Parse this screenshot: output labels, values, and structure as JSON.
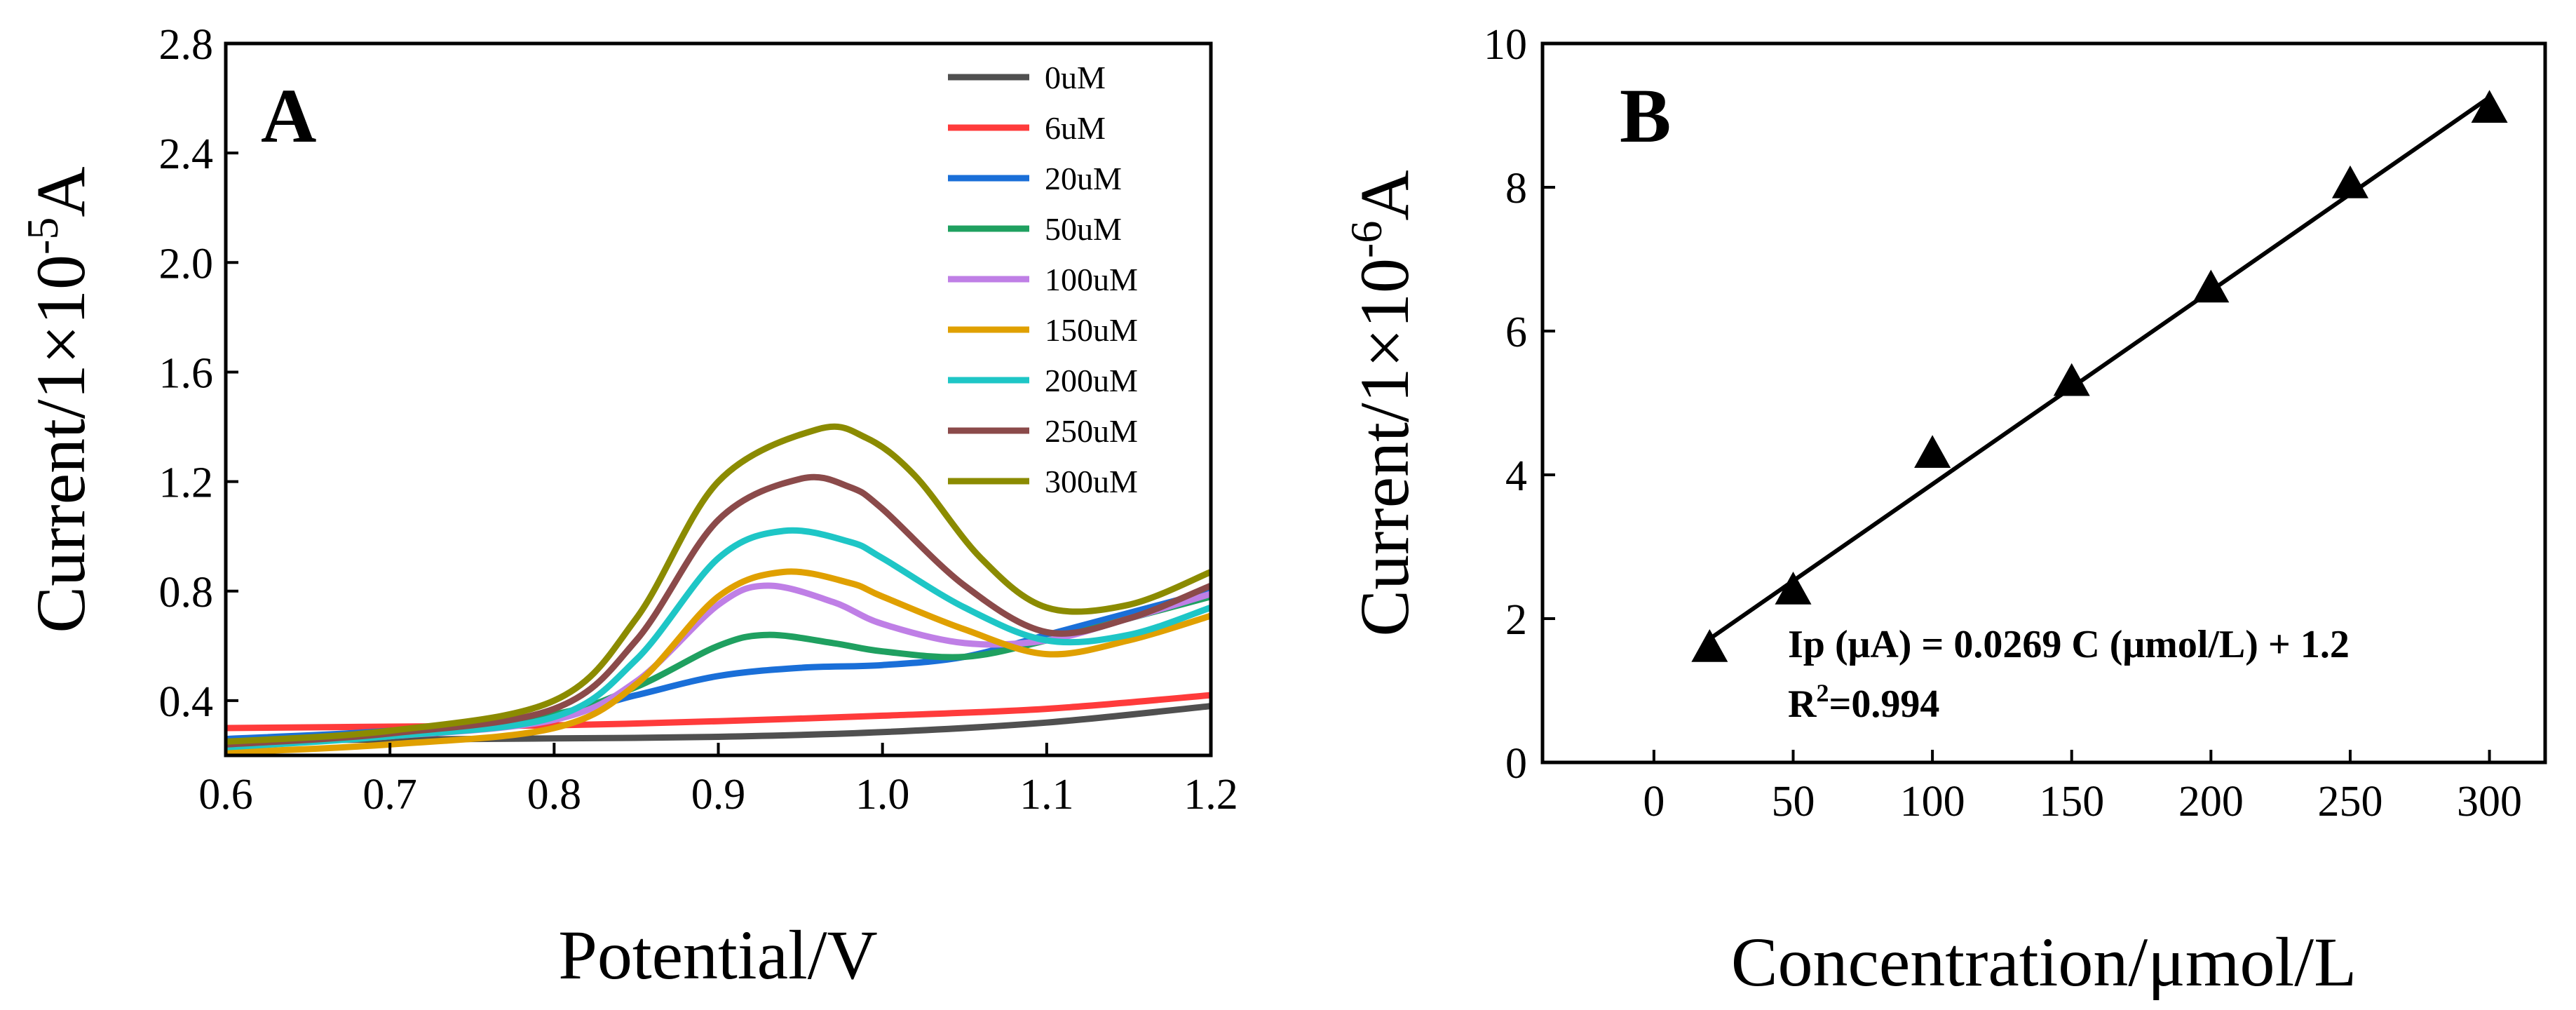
{
  "chart_data": [
    {
      "type": "line",
      "panel_label": "A",
      "xlabel": "Potential/V",
      "ylabel_prefix": "Current/1×10",
      "ylabel_exp": "-5",
      "ylabel_unit": "A",
      "xlim": [
        0.6,
        1.2
      ],
      "ylim": [
        0.2,
        2.8
      ],
      "xticks": [
        "0.6",
        "0.7",
        "0.8",
        "0.9",
        "1.0",
        "1.1",
        "1.2"
      ],
      "yticks": [
        "0.4",
        "0.8",
        "1.2",
        "1.6",
        "2.0",
        "2.4",
        "2.8"
      ],
      "legend_position": "top-right",
      "series": [
        {
          "name": "0uM",
          "color": "#505050",
          "points": [
            [
              0.6,
              0.255
            ],
            [
              0.7,
              0.258
            ],
            [
              0.8,
              0.262
            ],
            [
              0.9,
              0.268
            ],
            [
              1.0,
              0.285
            ],
            [
              1.1,
              0.32
            ],
            [
              1.2,
              0.38
            ]
          ]
        },
        {
          "name": "6uM",
          "color": "#ff3b3b",
          "points": [
            [
              0.6,
              0.3
            ],
            [
              0.7,
              0.305
            ],
            [
              0.8,
              0.31
            ],
            [
              0.9,
              0.325
            ],
            [
              1.0,
              0.345
            ],
            [
              1.1,
              0.37
            ],
            [
              1.2,
              0.42
            ]
          ]
        },
        {
          "name": "20uM",
          "color": "#1a6fd8",
          "points": [
            [
              0.6,
              0.26
            ],
            [
              0.7,
              0.29
            ],
            [
              0.8,
              0.35
            ],
            [
              0.85,
              0.42
            ],
            [
              0.9,
              0.49
            ],
            [
              0.95,
              0.52
            ],
            [
              1.0,
              0.53
            ],
            [
              1.05,
              0.56
            ],
            [
              1.1,
              0.64
            ],
            [
              1.15,
              0.72
            ],
            [
              1.2,
              0.8
            ]
          ]
        },
        {
          "name": "50uM",
          "color": "#1fa060",
          "points": [
            [
              0.6,
              0.25
            ],
            [
              0.7,
              0.28
            ],
            [
              0.8,
              0.35
            ],
            [
              0.85,
              0.45
            ],
            [
              0.9,
              0.6
            ],
            [
              0.93,
              0.64
            ],
            [
              0.97,
              0.61
            ],
            [
              1.0,
              0.58
            ],
            [
              1.05,
              0.56
            ],
            [
              1.1,
              0.62
            ],
            [
              1.15,
              0.7
            ],
            [
              1.2,
              0.78
            ]
          ]
        },
        {
          "name": "100uM",
          "color": "#bf7fe6",
          "points": [
            [
              0.6,
              0.24
            ],
            [
              0.7,
              0.27
            ],
            [
              0.8,
              0.33
            ],
            [
              0.85,
              0.47
            ],
            [
              0.9,
              0.75
            ],
            [
              0.93,
              0.82
            ],
            [
              0.97,
              0.76
            ],
            [
              1.0,
              0.68
            ],
            [
              1.05,
              0.61
            ],
            [
              1.1,
              0.62
            ],
            [
              1.15,
              0.7
            ],
            [
              1.2,
              0.79
            ]
          ]
        },
        {
          "name": "150uM",
          "color": "#e0a000",
          "points": [
            [
              0.6,
              0.21
            ],
            [
              0.7,
              0.24
            ],
            [
              0.8,
              0.3
            ],
            [
              0.85,
              0.46
            ],
            [
              0.9,
              0.78
            ],
            [
              0.94,
              0.87
            ],
            [
              0.98,
              0.83
            ],
            [
              1.0,
              0.78
            ],
            [
              1.05,
              0.66
            ],
            [
              1.1,
              0.57
            ],
            [
              1.15,
              0.62
            ],
            [
              1.2,
              0.71
            ]
          ]
        },
        {
          "name": "200uM",
          "color": "#1ec6c6",
          "points": [
            [
              0.6,
              0.23
            ],
            [
              0.7,
              0.27
            ],
            [
              0.8,
              0.34
            ],
            [
              0.85,
              0.55
            ],
            [
              0.9,
              0.92
            ],
            [
              0.94,
              1.02
            ],
            [
              0.98,
              0.98
            ],
            [
              1.0,
              0.92
            ],
            [
              1.05,
              0.74
            ],
            [
              1.1,
              0.62
            ],
            [
              1.15,
              0.64
            ],
            [
              1.2,
              0.74
            ]
          ]
        },
        {
          "name": "250uM",
          "color": "#8b4a4a",
          "points": [
            [
              0.6,
              0.24
            ],
            [
              0.7,
              0.28
            ],
            [
              0.8,
              0.37
            ],
            [
              0.85,
              0.62
            ],
            [
              0.9,
              1.06
            ],
            [
              0.95,
              1.21
            ],
            [
              0.98,
              1.18
            ],
            [
              1.0,
              1.1
            ],
            [
              1.05,
              0.82
            ],
            [
              1.1,
              0.65
            ],
            [
              1.15,
              0.7
            ],
            [
              1.2,
              0.82
            ]
          ]
        },
        {
          "name": "300uM",
          "color": "#8b8b00",
          "points": [
            [
              0.6,
              0.25
            ],
            [
              0.7,
              0.29
            ],
            [
              0.8,
              0.4
            ],
            [
              0.85,
              0.7
            ],
            [
              0.9,
              1.2
            ],
            [
              0.96,
              1.39
            ],
            [
              0.99,
              1.36
            ],
            [
              1.02,
              1.22
            ],
            [
              1.06,
              0.92
            ],
            [
              1.1,
              0.74
            ],
            [
              1.15,
              0.75
            ],
            [
              1.2,
              0.87
            ]
          ]
        }
      ]
    },
    {
      "type": "scatter",
      "panel_label": "B",
      "xlabel": "Concentration/μmol/L",
      "ylabel_prefix": "Current/1×10",
      "ylabel_exp": "-6",
      "ylabel_unit": "A",
      "xlim": [
        -40,
        320
      ],
      "ylim": [
        0,
        10
      ],
      "xticks": [
        "0",
        "50",
        "100",
        "150",
        "200",
        "250",
        "300"
      ],
      "yticks": [
        "0",
        "2",
        "4",
        "6",
        "8",
        "10"
      ],
      "points": [
        [
          20,
          1.6
        ],
        [
          50,
          2.4
        ],
        [
          100,
          4.3
        ],
        [
          150,
          5.3
        ],
        [
          200,
          6.6
        ],
        [
          250,
          8.05
        ],
        [
          300,
          9.1
        ]
      ],
      "fit": {
        "slope": 0.0269,
        "intercept": 1.18,
        "x_range": [
          20,
          300
        ]
      },
      "equation": "Ip (μA) = 0.0269 C (μmol/L) + 1.2",
      "r2_prefix": "R",
      "r2_sup": "2",
      "r2_value": "=0.994"
    }
  ]
}
